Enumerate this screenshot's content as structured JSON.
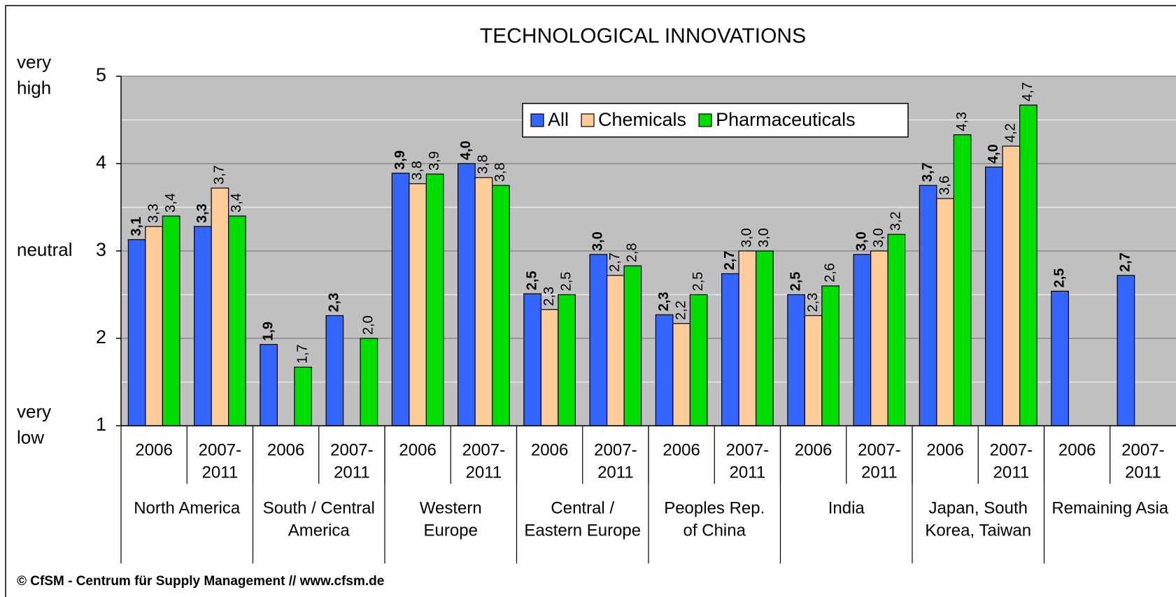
{
  "chart_data": {
    "type": "bar",
    "title": "TECHNOLOGICAL INNOVATIONS",
    "annotations": [
      {
        "lines": [
          "very",
          "high"
        ],
        "value": 5
      },
      {
        "lines": [
          "neutral"
        ],
        "value": 3
      },
      {
        "lines": [
          "very",
          "low"
        ],
        "value": 1
      }
    ],
    "categories": [
      [
        "2006"
      ],
      [
        "2007-",
        "2011"
      ],
      [
        "2006"
      ],
      [
        "2007-",
        "2011"
      ],
      [
        "2006"
      ],
      [
        "2007-",
        "2011"
      ],
      [
        "2006"
      ],
      [
        "2007-",
        "2011"
      ],
      [
        "2006"
      ],
      [
        "2007-",
        "2011"
      ],
      [
        "2006"
      ],
      [
        "2007-",
        "2011"
      ],
      [
        "2006"
      ],
      [
        "2007-",
        "2011"
      ],
      [
        "2006"
      ],
      [
        "2007-",
        "2011"
      ]
    ],
    "groups": [
      {
        "lines": [
          "North America"
        ],
        "span": 2
      },
      {
        "lines": [
          "South / Central",
          "America"
        ],
        "span": 2
      },
      {
        "lines": [
          "Western",
          "Europe"
        ],
        "span": 2
      },
      {
        "lines": [
          "Central /",
          "Eastern Europe"
        ],
        "span": 2
      },
      {
        "lines": [
          "Peoples Rep.",
          "of China"
        ],
        "span": 2
      },
      {
        "lines": [
          "India"
        ],
        "span": 2
      },
      {
        "lines": [
          "Japan, South",
          "Korea, Taiwan"
        ],
        "span": 2
      },
      {
        "lines": [
          "Remaining Asia"
        ],
        "span": 2
      }
    ],
    "series": [
      {
        "name": "All",
        "color": "#3366ff",
        "bold_labels": true,
        "values": [
          3.13,
          3.28,
          1.93,
          2.26,
          3.89,
          4.0,
          2.51,
          2.96,
          2.27,
          2.74,
          2.5,
          2.96,
          3.75,
          3.96,
          2.54,
          2.72
        ],
        "value_labels": [
          "3,1",
          "3,3",
          "1,9",
          "2,3",
          "3,9",
          "4,0",
          "2,5",
          "3,0",
          "2,3",
          "2,7",
          "2,5",
          "3,0",
          "3,7",
          "4,0",
          "2,5",
          "2,7"
        ]
      },
      {
        "name": "Chemicals",
        "color": "#ffcc99",
        "bold_labels": false,
        "values": [
          3.28,
          3.72,
          null,
          null,
          3.77,
          3.84,
          2.33,
          2.72,
          2.17,
          3.0,
          2.26,
          3.0,
          3.6,
          4.2,
          null,
          null
        ],
        "value_labels": [
          "3,3",
          "3,7",
          null,
          null,
          "3,8",
          "3,8",
          "2,3",
          "2,7",
          "2,2",
          "3,0",
          "2,3",
          "3,0",
          "3,6",
          "4,2",
          null,
          null
        ]
      },
      {
        "name": "Pharmaceuticals",
        "color": "#00dd00",
        "bold_labels": false,
        "values": [
          3.4,
          3.4,
          1.67,
          2.0,
          3.88,
          3.75,
          2.5,
          2.83,
          2.5,
          3.0,
          2.6,
          3.19,
          4.33,
          4.67,
          null,
          null
        ],
        "value_labels": [
          "3,4",
          "3,4",
          "1,7",
          "2,0",
          "3,9",
          "3,8",
          "2,5",
          "2,8",
          "2,5",
          "3,0",
          "2,6",
          "3,2",
          "4,3",
          "4,7",
          null,
          null
        ]
      }
    ],
    "ylim": [
      1,
      5
    ],
    "yticks": [
      1,
      2,
      3,
      4,
      5
    ],
    "minor_yticks": [
      1.5,
      2.5,
      3.5,
      4.5
    ],
    "grid": true,
    "legend": "top",
    "footer": "© CfSM - Centrum für Supply Management // www.cfsm.de"
  }
}
